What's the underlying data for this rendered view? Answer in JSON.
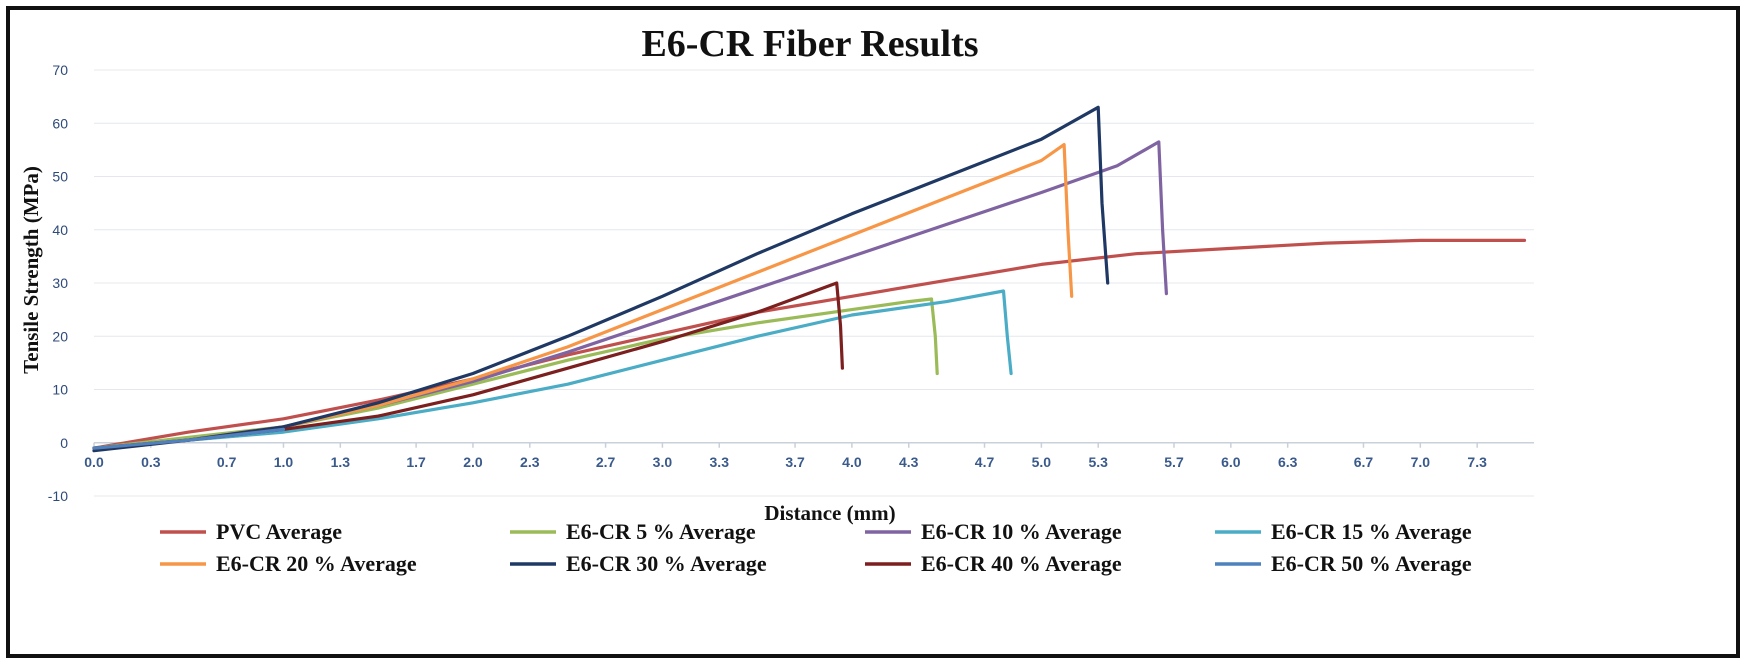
{
  "chart_data": {
    "type": "line",
    "title": "E6-CR Fiber Results",
    "xlabel": "Distance (mm)",
    "ylabel": "Tensile Strength (MPa)",
    "xlim": [
      0.0,
      7.6
    ],
    "ylim": [
      -10,
      70
    ],
    "yticks": [
      -10,
      0,
      10,
      20,
      30,
      40,
      50,
      60,
      70
    ],
    "ytick_labels": [
      "-10",
      "0",
      "10",
      "20",
      "30",
      "40",
      "50",
      "60",
      "70"
    ],
    "xticks": [
      0.0,
      0.3,
      0.7,
      1.0,
      1.3,
      1.7,
      2.0,
      2.3,
      2.7,
      3.0,
      3.3,
      3.7,
      4.0,
      4.3,
      4.7,
      5.0,
      5.3,
      5.7,
      6.0,
      6.3,
      6.7,
      7.0,
      7.3
    ],
    "xtick_labels": [
      "0.0",
      "0.3",
      "0.7",
      "1.0",
      "1.3",
      "1.7",
      "2.0",
      "2.3",
      "2.7",
      "3.0",
      "3.3",
      "3.7",
      "4.0",
      "4.3",
      "4.7",
      "5.0",
      "5.3",
      "5.7",
      "6.0",
      "6.3",
      "6.7",
      "7.0",
      "7.3"
    ],
    "grid": true,
    "legend_position": "bottom",
    "series": [
      {
        "name": "PVC Average",
        "color": "#c0504d",
        "x": [
          0.0,
          0.5,
          1.0,
          1.5,
          2.0,
          2.5,
          3.0,
          3.5,
          4.0,
          4.5,
          5.0,
          5.5,
          6.0,
          6.5,
          7.0,
          7.55
        ],
        "y": [
          -1,
          2,
          4.5,
          8,
          12,
          16.5,
          20.5,
          24.5,
          27.5,
          30.5,
          33.5,
          35.5,
          36.5,
          37.5,
          38,
          38
        ]
      },
      {
        "name": "E6-CR 5 % Average",
        "color": "#9bbb59",
        "x": [
          0.0,
          0.5,
          1.0,
          1.5,
          2.0,
          2.5,
          3.0,
          3.5,
          4.0,
          4.3,
          4.42,
          4.44,
          4.45
        ],
        "y": [
          -1,
          1,
          3,
          6.5,
          11,
          15.5,
          19.5,
          22.5,
          25,
          26.5,
          27,
          20,
          13
        ]
      },
      {
        "name": "E6-CR 10 % Average",
        "color": "#8064a2",
        "x": [
          0.0,
          0.5,
          1.0,
          1.5,
          2.0,
          2.5,
          3.0,
          3.5,
          4.0,
          4.5,
          5.0,
          5.4,
          5.62,
          5.64,
          5.66
        ],
        "y": [
          -1,
          0.5,
          3,
          7,
          11.5,
          17,
          23,
          29,
          35,
          41,
          47,
          52,
          56.5,
          40,
          28
        ]
      },
      {
        "name": "E6-CR 15 % Average",
        "color": "#4bacc6",
        "x": [
          0.0,
          0.5,
          1.0,
          1.5,
          2.0,
          2.5,
          3.0,
          3.5,
          4.0,
          4.5,
          4.8,
          4.82,
          4.84
        ],
        "y": [
          -1,
          0.5,
          2,
          4.5,
          7.5,
          11,
          15.5,
          20,
          24,
          26.5,
          28.5,
          20,
          13
        ]
      },
      {
        "name": "E6-CR 20 % Average",
        "color": "#f79646",
        "x": [
          0.0,
          0.5,
          1.0,
          1.5,
          2.0,
          2.5,
          3.0,
          3.5,
          4.0,
          4.5,
          5.0,
          5.12,
          5.14,
          5.16
        ],
        "y": [
          -1,
          0.5,
          3,
          7,
          12,
          18,
          25,
          32,
          39,
          46,
          53,
          56,
          40,
          27.5
        ]
      },
      {
        "name": "E6-CR 30 % Average",
        "color": "#1f3864",
        "x": [
          0.0,
          0.5,
          1.0,
          1.5,
          2.0,
          2.5,
          3.0,
          3.5,
          4.0,
          4.5,
          5.0,
          5.3,
          5.32,
          5.35
        ],
        "y": [
          -1.5,
          0.5,
          3,
          7.5,
          13,
          20,
          27.5,
          35.5,
          43,
          50,
          57,
          63,
          45,
          30
        ]
      },
      {
        "name": "E6-CR 40 % Average",
        "color": "#7b1f1f",
        "x": [
          0.0,
          0.5,
          1.0,
          1.5,
          2.0,
          2.5,
          3.0,
          3.5,
          3.92,
          3.94,
          3.95
        ],
        "y": [
          -1,
          0.5,
          2.5,
          5,
          9,
          14,
          19,
          24.5,
          30,
          22,
          14
        ]
      },
      {
        "name": "E6-CR 50 % Average",
        "color": "#4f81bd",
        "x": [
          0.0,
          0.5,
          1.0
        ],
        "y": [
          -1,
          0.5,
          2.5
        ]
      }
    ]
  }
}
